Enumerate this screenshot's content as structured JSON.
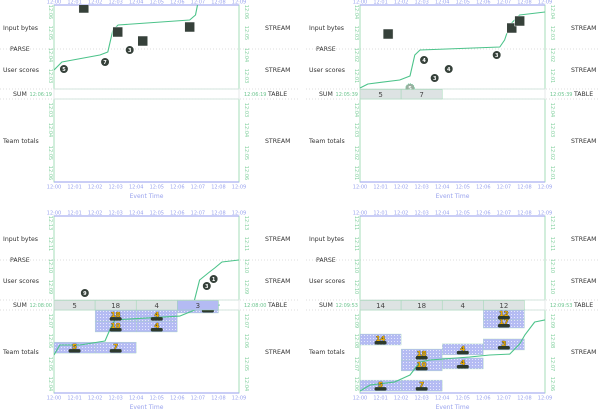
{
  "rows": {
    "input_bytes": "Input bytes",
    "parse": "PARSE",
    "user_scores": "User scores",
    "sum": "SUM",
    "team_totals": "Team totals",
    "stream": "STREAM",
    "table": "TABLE"
  },
  "xlabel": "Event Time",
  "event_ticks": [
    "12:00",
    "12:01",
    "12:02",
    "12:03",
    "12:04",
    "12:05",
    "12:06",
    "12:07",
    "12:08",
    "12:09"
  ],
  "colors": {
    "event_axis": "#aab0f0",
    "processing_axis": "#8fd6a8",
    "watermark": "#4cc38a",
    "input": "#36413a",
    "score": "#36413a",
    "table_pane": "#dde3e3",
    "result_pane": "#b4bbf3",
    "result_value": "#e8a800"
  },
  "panels": [
    {
      "sum_time": "12:06:19",
      "upper_ticks": [
        "12:06",
        "12:05",
        "12:04",
        "12:03"
      ],
      "lower_ticks": [
        "12:03",
        "12:04",
        "12:05",
        "12:06"
      ],
      "inputs": [
        {
          "event": "12:01:27",
          "proc": "12:06:45"
        },
        {
          "event": "12:03:06",
          "proc": "12:04:45"
        },
        {
          "event": "12:04:19",
          "proc": "12:04:00"
        },
        {
          "event": "12:06:36",
          "proc": "12:05:10"
        }
      ],
      "scores": [
        {
          "value": "5",
          "event": "12:00:29",
          "proc": "12:01:40"
        },
        {
          "value": "7",
          "event": "12:02:29",
          "proc": "12:02:15"
        },
        {
          "value": "3",
          "event": "12:03:41",
          "proc": "12:03:15"
        }
      ],
      "panes": [],
      "results": [],
      "watermark_upper": [
        [
          "12:00:00",
          "12:01:35"
        ],
        [
          "12:00:23",
          "12:02:15"
        ],
        [
          "12:02:14",
          "12:02:50"
        ],
        [
          "12:02:37",
          "12:03:05"
        ],
        [
          "12:02:52",
          "12:04:55"
        ],
        [
          "12:03:07",
          "12:05:20"
        ],
        [
          "12:06:36",
          "12:05:45"
        ],
        [
          "12:06:53",
          "12:06:10"
        ],
        [
          "12:06:59",
          "12:07:00"
        ]
      ],
      "watermark_lower": []
    },
    {
      "sum_time": "12:05:39",
      "upper_ticks": [
        "12:04",
        "12:03",
        "12:02",
        "12:01"
      ],
      "lower_ticks": [
        "12:04",
        "12:03",
        "12:02",
        "12:01"
      ],
      "inputs": [
        {
          "event": "12:01:22",
          "proc": "12:04:35"
        },
        {
          "event": "12:07:23",
          "proc": "12:05:05"
        },
        {
          "event": "12:07:46",
          "proc": "12:05:40"
        }
      ],
      "scores": [
        {
          "value": "4",
          "event": "12:03:07",
          "proc": "12:02:25"
        },
        {
          "value": "3",
          "event": "12:03:38",
          "proc": "12:00:55"
        },
        {
          "value": "4",
          "event": "12:04:19",
          "proc": "12:01:40"
        },
        {
          "value": "3",
          "event": "12:06:39",
          "proc": "12:02:50"
        },
        {
          "value": "5",
          "event": "12:02:26",
          "proc": "12:00:05",
          "ghost": true
        }
      ],
      "panes": [
        {
          "start": "12:00",
          "end": "12:02",
          "value": "5",
          "state": "table"
        },
        {
          "start": "12:02",
          "end": "12:04",
          "value": "7",
          "state": "table"
        }
      ],
      "results": [],
      "watermark_upper": [
        [
          "12:00:00",
          "12:00:05"
        ],
        [
          "12:00:23",
          "12:00:25"
        ],
        [
          "12:01:56",
          "12:00:45"
        ],
        [
          "12:02:26",
          "12:01:05"
        ],
        [
          "12:02:40",
          "12:02:50"
        ],
        [
          "12:02:55",
          "12:03:15"
        ],
        [
          "12:06:48",
          "12:03:30"
        ],
        [
          "12:07:02",
          "12:04:05"
        ],
        [
          "12:07:17",
          "12:05:20"
        ],
        [
          "12:07:46",
          "12:06:10"
        ],
        [
          "12:09:00",
          "12:06:25"
        ]
      ],
      "watermark_lower": []
    },
    {
      "sum_time": "12:08:00",
      "upper_ticks": [
        "12:13",
        "12:11",
        "12:10",
        "12:09"
      ],
      "lower_ticks": [
        "12:07",
        "12:06",
        "12:05",
        "12:04"
      ],
      "inputs": [],
      "scores": [
        {
          "value": "9",
          "event": "12:01:30",
          "proc": "12:00:35"
        },
        {
          "value": "3",
          "event": "12:07:26",
          "proc": "12:01:10"
        },
        {
          "value": "1",
          "event": "12:07:46",
          "proc": "12:01:45"
        }
      ],
      "panes": [
        {
          "start": "12:00",
          "end": "12:02",
          "value": "5",
          "state": "table"
        },
        {
          "start": "12:02",
          "end": "12:04",
          "value": "18",
          "state": "table"
        },
        {
          "start": "12:04",
          "end": "12:06",
          "value": "4",
          "state": "table"
        },
        {
          "start": "12:06",
          "end": "12:08",
          "value": "3",
          "state": "active"
        }
      ],
      "results": [
        {
          "start": "12:00",
          "end": "12:02",
          "value": "5",
          "proc": "12:03:47"
        },
        {
          "start": "12:02",
          "end": "12:04",
          "value": "7",
          "proc": "12:03:47"
        },
        {
          "start": "12:02",
          "end": "12:04",
          "value": "10",
          "proc": "12:05:34"
        },
        {
          "start": "12:02",
          "end": "12:04",
          "value": "18",
          "proc": "12:06:29"
        },
        {
          "start": "12:04",
          "end": "12:06",
          "value": "4",
          "proc": "12:05:34"
        },
        {
          "start": "12:04",
          "end": "12:06",
          "value": "4",
          "proc": "12:06:29"
        },
        {
          "start": "12:06",
          "end": "12:08",
          "value": "3",
          "proc": "12:07:10"
        }
      ],
      "watermark_upper": [
        [
          "12:06:50",
          "12:00:00"
        ],
        [
          "12:07:05",
          "12:01:40"
        ],
        [
          "12:07:34",
          "12:02:20"
        ],
        [
          "12:07:49",
          "12:02:40"
        ],
        [
          "12:08:10",
          "12:03:10"
        ],
        [
          "12:09:00",
          "12:03:20"
        ]
      ],
      "watermark_lower": [
        [
          "12:00:00",
          "12:03:12"
        ],
        [
          "12:00:17",
          "12:04:03"
        ],
        [
          "12:01:16",
          "12:04:03"
        ],
        [
          "12:02:29",
          "12:04:23"
        ],
        [
          "12:02:43",
          "12:05:19"
        ],
        [
          "12:02:58",
          "12:06:10"
        ],
        [
          "12:06:07",
          "12:06:29"
        ],
        [
          "12:07:05",
          "12:07:10"
        ],
        [
          "12:08:04",
          "12:07:25"
        ]
      ]
    },
    {
      "sum_time": "12:09:53",
      "upper_ticks": [
        "12:11",
        "12:11",
        "12:10",
        "12:10"
      ],
      "lower_ticks": [
        "12:09",
        "12:08",
        "12:07",
        "12:06"
      ],
      "inputs": [],
      "scores": [],
      "panes": [
        {
          "start": "12:00",
          "end": "12:02",
          "value": "14",
          "state": "table"
        },
        {
          "start": "12:02",
          "end": "12:04",
          "value": "18",
          "state": "table"
        },
        {
          "start": "12:04",
          "end": "12:06",
          "value": "4",
          "state": "table"
        },
        {
          "start": "12:06",
          "end": "12:08",
          "value": "12",
          "state": "table"
        }
      ],
      "results": [
        {
          "start": "12:00",
          "end": "12:02",
          "value": "5",
          "proc": "12:00:35"
        },
        {
          "start": "12:02",
          "end": "12:04",
          "value": "7",
          "proc": "12:00:35"
        },
        {
          "start": "12:00",
          "end": "12:02",
          "value": "14",
          "proc": "12:04:28"
        },
        {
          "start": "12:02",
          "end": "12:04",
          "value": "10",
          "proc": "12:02:17"
        },
        {
          "start": "12:02",
          "end": "12:04",
          "value": "18",
          "proc": "12:03:12"
        },
        {
          "start": "12:04",
          "end": "12:06",
          "value": "4",
          "proc": "12:02:27"
        },
        {
          "start": "12:04",
          "end": "12:06",
          "value": "4",
          "proc": "12:03:38"
        },
        {
          "start": "12:06",
          "end": "12:08",
          "value": "3",
          "proc": "12:04:03"
        },
        {
          "start": "12:06",
          "end": "12:08",
          "value": "17",
          "proc": "12:05:54"
        },
        {
          "start": "12:06",
          "end": "12:08",
          "value": "12",
          "proc": "12:06:35"
        }
      ],
      "watermark_upper": [],
      "watermark_lower": [
        [
          "12:00:00",
          "12:00:10"
        ],
        [
          "12:00:29",
          "12:00:40"
        ],
        [
          "12:01:42",
          "12:00:56"
        ],
        [
          "12:02:26",
          "12:01:31"
        ],
        [
          "12:02:55",
          "12:02:37"
        ],
        [
          "12:03:24",
          "12:02:47"
        ],
        [
          "12:05:20",
          "12:03:02"
        ],
        [
          "12:06:19",
          "12:03:12"
        ],
        [
          "12:07:17",
          "12:03:17"
        ],
        [
          "12:07:46",
          "12:04:08"
        ],
        [
          "12:08:01",
          "12:04:53"
        ],
        [
          "12:08:30",
          "12:05:59"
        ],
        [
          "12:09:00",
          "12:06:10"
        ]
      ]
    }
  ]
}
